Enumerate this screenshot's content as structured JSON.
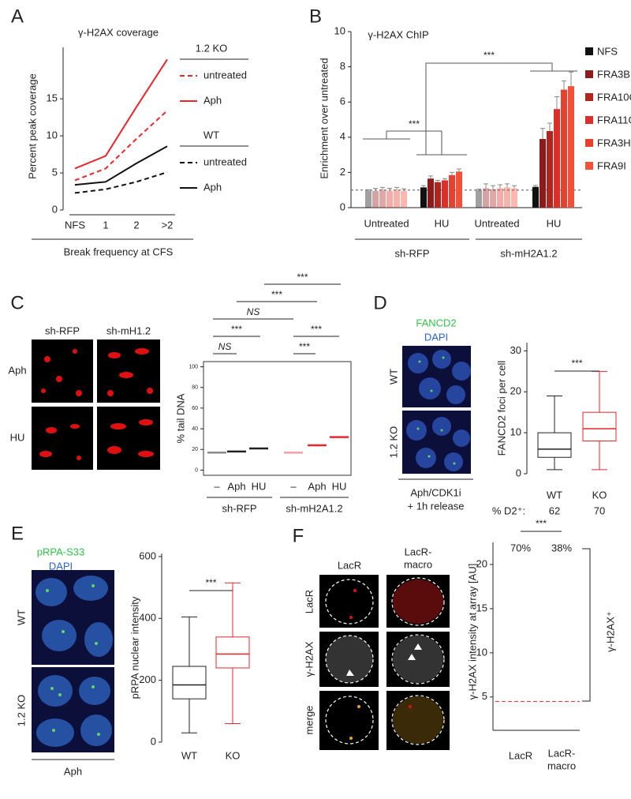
{
  "chart_data": [
    {
      "type": "line",
      "panel": "A",
      "title": "γ-H2AX coverage",
      "y_label": "Percent peak coverage",
      "x_label": "Break frequency at CFS",
      "categories": [
        "NFS",
        "1",
        "2",
        ">2"
      ],
      "ylim": [
        0,
        23
      ],
      "yticks": [
        0,
        5,
        10,
        15
      ],
      "legend_groups": [
        {
          "name": "1.2 KO",
          "series": [
            {
              "name": "untreated",
              "color": "#e8262b",
              "line_style": "dashed",
              "values": [
                4.0,
                5.6,
                9.6,
                13.4
              ]
            },
            {
              "name": "Aph",
              "color": "#e8262b",
              "line_style": "solid",
              "values": [
                5.6,
                7.3,
                13.9,
                20.3
              ]
            }
          ]
        },
        {
          "name": "WT",
          "series": [
            {
              "name": "untreated",
              "color": "#111111",
              "line_style": "dashed",
              "values": [
                2.3,
                2.8,
                3.8,
                5.1
              ]
            },
            {
              "name": "Aph",
              "color": "#111111",
              "line_style": "solid",
              "values": [
                3.4,
                3.8,
                6.3,
                8.6
              ]
            }
          ]
        }
      ]
    },
    {
      "type": "bar",
      "panel": "B",
      "title": "γ-H2AX ChIP",
      "y_label": "Enrichment  over untreated",
      "categories": [
        "Untreated",
        "HU",
        "Untreated",
        "HU"
      ],
      "groups": [
        "sh-RFP",
        "sh-mH2A1.2"
      ],
      "light_categories": [
        true,
        false,
        true,
        false
      ],
      "ylim": [
        0,
        10
      ],
      "yticks": [
        0,
        2,
        4,
        6,
        8,
        10
      ],
      "reference_line": 1,
      "significance": [
        "***",
        "***"
      ],
      "series": [
        {
          "name": "NFS",
          "color": "#111111",
          "values": [
            0.97,
            1.15,
            1.0,
            1.18
          ],
          "errors": [
            0.05,
            0.1,
            0.05,
            0.08
          ]
        },
        {
          "name": "FRA3B",
          "color": "#8e1b1b",
          "values": [
            0.95,
            1.65,
            1.1,
            3.9
          ],
          "errors": [
            0.15,
            0.15,
            0.25,
            0.6
          ]
        },
        {
          "name": "FRA10C",
          "color": "#b3241f",
          "values": [
            1.0,
            1.45,
            1.05,
            4.35
          ],
          "errors": [
            0.15,
            0.1,
            0.2,
            0.45
          ]
        },
        {
          "name": "FRA11G",
          "color": "#d93129",
          "values": [
            0.95,
            1.55,
            1.1,
            5.6
          ],
          "errors": [
            0.15,
            0.1,
            0.2,
            0.7
          ]
        },
        {
          "name": "FRA3He",
          "color": "#e8402f",
          "values": [
            1.0,
            1.85,
            1.15,
            6.7
          ],
          "errors": [
            0.15,
            0.15,
            0.2,
            0.5
          ]
        },
        {
          "name": "FRA9I",
          "color": "#f25139",
          "values": [
            0.95,
            2.05,
            1.1,
            6.9
          ],
          "errors": [
            0.12,
            0.15,
            0.15,
            0.8
          ]
        }
      ]
    },
    {
      "type": "strip",
      "panel": "C",
      "y_label": "% tail DNA",
      "image_columns": [
        "sh-RFP",
        "sh-mH1.2"
      ],
      "image_rows": [
        "Aph",
        "HU"
      ],
      "categories": [
        "–",
        "Aph",
        "HU",
        "–",
        "Aph",
        "HU"
      ],
      "groups": [
        "sh-RFP",
        "sh-mH2A1.2"
      ],
      "ylim": [
        -5,
        105
      ],
      "yticks": [
        0,
        20,
        40,
        60,
        80,
        100
      ],
      "values": [
        17,
        18,
        21,
        17,
        24,
        32
      ],
      "colors": [
        "#888888",
        "#222222",
        "#222222",
        "#f2a0a0",
        "#e8262b",
        "#e8262b"
      ],
      "significance": [
        "***",
        "***",
        "NS",
        "***",
        "***",
        "NS",
        "***"
      ]
    },
    {
      "type": "box",
      "panel": "D",
      "channels": [
        {
          "name": "FANCD2",
          "color": "#2fc24a"
        },
        {
          "name": "DAPI",
          "color": "#2a62d4"
        }
      ],
      "image_rows": [
        "WT",
        "1.2 KO"
      ],
      "image_caption": [
        "Aph/CDK1i",
        "+ 1h release"
      ],
      "y_label": "FANCD2 foci per cell",
      "categories": [
        "WT",
        "KO"
      ],
      "ylim": [
        0,
        32
      ],
      "yticks": [
        0,
        10,
        20,
        30
      ],
      "boxes": [
        {
          "min": 1,
          "q1": 4,
          "median": 6,
          "q3": 10,
          "max": 19,
          "color": "#222222"
        },
        {
          "min": 1,
          "q1": 8,
          "median": 11,
          "q3": 15,
          "max": 25,
          "color": "#e8262b"
        }
      ],
      "significance": "***",
      "footer_label": "% D2⁺:",
      "footer_values": [
        "62",
        "70"
      ]
    },
    {
      "type": "box",
      "panel": "E",
      "channels": [
        {
          "name": "pRPA-S33",
          "color": "#2fc24a"
        },
        {
          "name": "DAPI",
          "color": "#2a62d4"
        }
      ],
      "image_rows": [
        "WT",
        "1.2 KO"
      ],
      "image_caption": [
        "Aph"
      ],
      "y_label": "pRPA nuclear intensity",
      "categories": [
        "WT",
        "KO"
      ],
      "ylim": [
        0,
        610
      ],
      "yticks": [
        0,
        200,
        400,
        600
      ],
      "boxes": [
        {
          "min": 30,
          "q1": 140,
          "median": 185,
          "q3": 245,
          "max": 405,
          "color": "#222222"
        },
        {
          "min": 60,
          "q1": 240,
          "median": 285,
          "q3": 340,
          "max": 515,
          "color": "#e8262b"
        }
      ],
      "significance": "***"
    },
    {
      "type": "strip",
      "panel": "F",
      "image_columns": [
        [
          "LacR"
        ],
        [
          "LacR-",
          "macro"
        ]
      ],
      "image_rows": [
        "LacR",
        "γ-H2AX",
        "merge"
      ],
      "y_label": "γ-H2AX intensity at array [AU]",
      "categories": [
        [
          "LacR"
        ],
        [
          "LacR-",
          "macro"
        ]
      ],
      "ylim": [
        2.3,
        22.5
      ],
      "yticks": [
        5,
        10,
        15,
        20
      ],
      "threshold": 4.5,
      "threshold_color": "#e8262b",
      "percent_labels": [
        "70%",
        "38%"
      ],
      "significance": "***",
      "bracket_label": "γ-H2AX⁺"
    }
  ]
}
